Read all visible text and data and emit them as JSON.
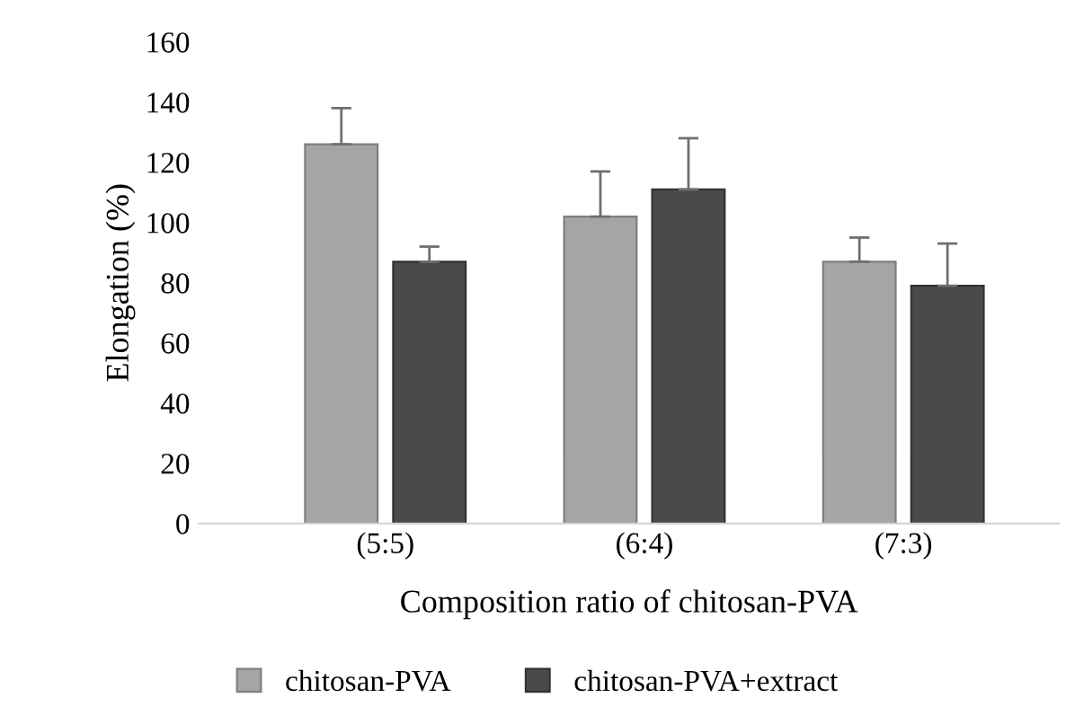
{
  "chart_data": {
    "type": "bar",
    "xlabel": "Composition ratio of chitosan-PVA",
    "ylabel": "Elongation (%)",
    "categories": [
      "(5:5)",
      "(6:4)",
      "(7:3)"
    ],
    "series": [
      {
        "name": "chitosan-PVA",
        "color": "#a5a5a5",
        "values": [
          126,
          102,
          87
        ],
        "errors": [
          [
            126,
            138
          ],
          [
            102,
            117
          ],
          [
            87,
            95
          ]
        ]
      },
      {
        "name": "chitosan-PVA+extract",
        "color": "#4a4a4a",
        "values": [
          87,
          111,
          79
        ],
        "errors": [
          [
            87,
            92
          ],
          [
            111,
            128
          ],
          [
            79,
            93
          ]
        ]
      }
    ],
    "ylim": [
      0,
      160
    ],
    "yticks": [
      0,
      20,
      40,
      60,
      80,
      100,
      120,
      140,
      160
    ],
    "grid": false,
    "legend": "bottom"
  }
}
